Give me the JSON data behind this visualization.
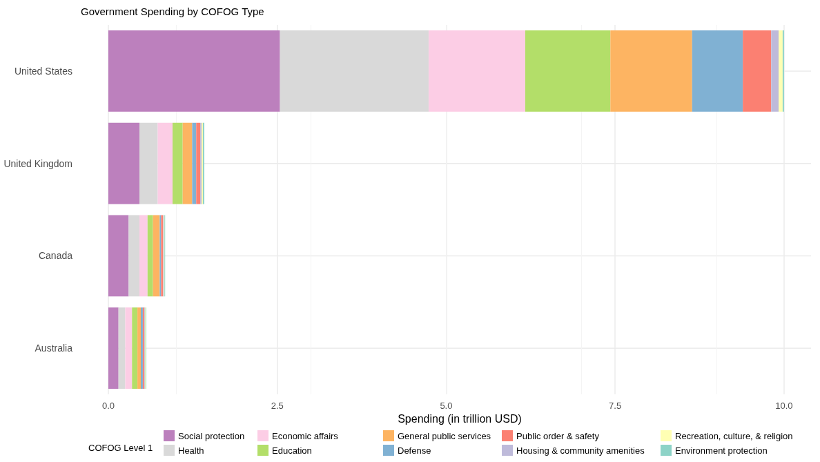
{
  "chart_data": {
    "type": "bar",
    "orientation": "horizontal",
    "stacked": true,
    "title": "Government Spending by COFOG Type",
    "xlabel": "Spending (in trillion USD)",
    "legend_title": "COFOG Level 1",
    "legend": "bottom",
    "grid": true,
    "categories": [
      "United States",
      "United Kingdom",
      "Canada",
      "Australia"
    ],
    "xlim": [
      0,
      10.4
    ],
    "xticks": [
      {
        "value": 0,
        "label": "0.0"
      },
      2.5,
      {
        "value": 5,
        "label": "5.0"
      },
      7.5,
      {
        "value": 10,
        "label": "10.0"
      }
    ],
    "series": [
      {
        "name": "Social protection",
        "color": "#bc80bd",
        "values": [
          2.54,
          0.46,
          0.3,
          0.15
        ]
      },
      {
        "name": "Health",
        "color": "#d9d9d9",
        "values": [
          2.2,
          0.27,
          0.16,
          0.1
        ]
      },
      {
        "name": "Economic affairs",
        "color": "#fccde5",
        "values": [
          1.43,
          0.22,
          0.12,
          0.1
        ]
      },
      {
        "name": "Education",
        "color": "#b3de69",
        "values": [
          1.26,
          0.15,
          0.08,
          0.08
        ]
      },
      {
        "name": "General public services",
        "color": "#fdb462",
        "values": [
          1.21,
          0.14,
          0.1,
          0.05
        ]
      },
      {
        "name": "Defense",
        "color": "#80b1d3",
        "values": [
          0.75,
          0.06,
          0.02,
          0.03
        ]
      },
      {
        "name": "Public order & safety",
        "color": "#fb8072",
        "values": [
          0.42,
          0.06,
          0.03,
          0.02
        ]
      },
      {
        "name": "Housing & community amenities",
        "color": "#bebada",
        "values": [
          0.11,
          0.02,
          0.01,
          0.01
        ]
      },
      {
        "name": "Recreation, culture, & religion",
        "color": "#ffffb3",
        "values": [
          0.06,
          0.02,
          0.01,
          0.01
        ]
      },
      {
        "name": "Environment protection",
        "color": "#8dd3c7",
        "values": [
          0.02,
          0.02,
          0.01,
          0.01
        ]
      }
    ]
  }
}
